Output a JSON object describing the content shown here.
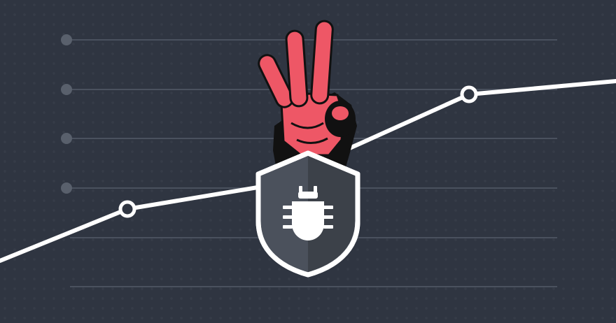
{
  "illustration": {
    "background_color": "#2f3541",
    "grid_color": "#4a515e",
    "dot_color": "#59606c",
    "trend_line_color": "#ffffff",
    "hand_color": "#ee5766",
    "hand_shadow_color": "#111111",
    "shield_fill_color": "#4b515c",
    "shield_dark_half_color": "#3c4149",
    "shield_outline_color": "#ffffff",
    "bug_color": "#ffffff",
    "icons": [
      "bug-icon",
      "shield-icon",
      "three-fingers-hand-icon"
    ]
  }
}
